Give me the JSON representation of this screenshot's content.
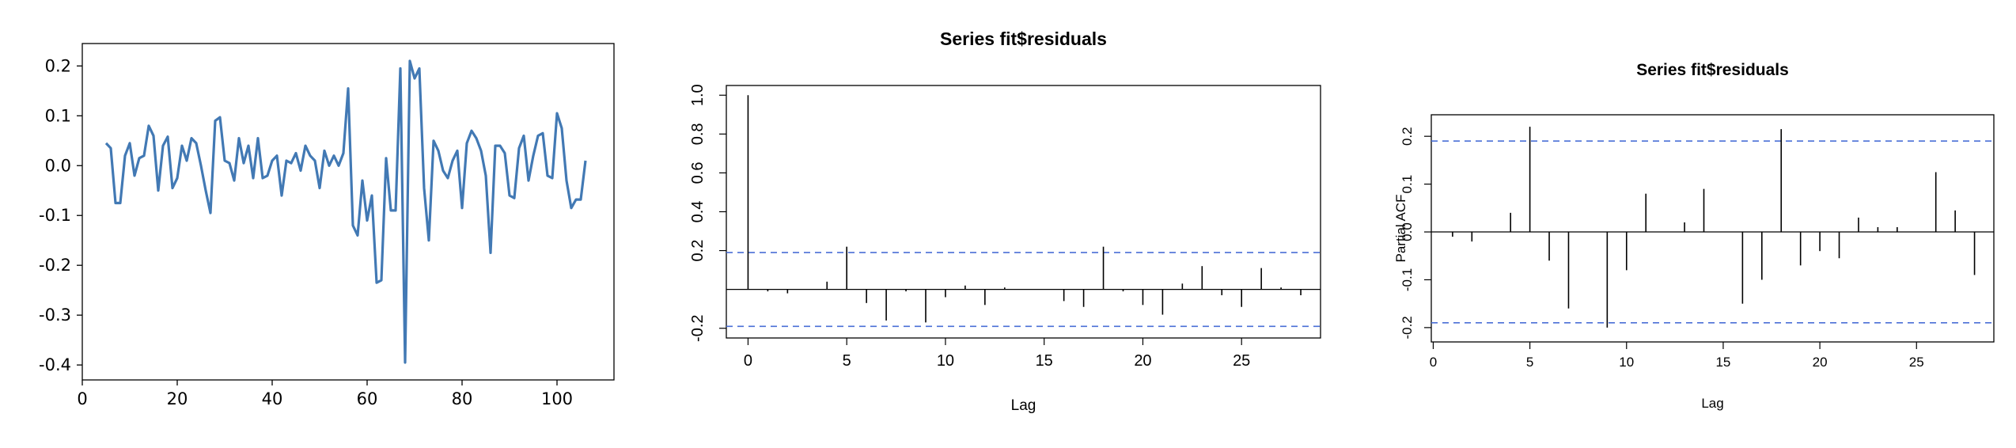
{
  "colors": {
    "line": "#4279b4",
    "stick": "#000000",
    "conf": "#4a6fd6",
    "frame": "#000000"
  },
  "chart_data": [
    {
      "type": "line",
      "title": "",
      "xlabel": "",
      "ylabel": "",
      "xlim": [
        0,
        112
      ],
      "ylim": [
        -0.43,
        0.245
      ],
      "xticks": [
        "0",
        "20",
        "40",
        "60",
        "80",
        "100"
      ],
      "yticks": [
        "0.2",
        "0.1",
        "0.0",
        "-0.1",
        "-0.2",
        "-0.3",
        "-0.4"
      ],
      "grid": false,
      "series": [
        {
          "x": [
            5,
            6,
            7,
            8,
            9,
            10,
            11,
            12,
            13,
            14,
            15,
            16,
            17,
            18,
            19,
            20,
            21,
            22,
            23,
            24,
            25,
            26,
            27,
            28,
            29,
            30,
            31,
            32,
            33,
            34,
            35,
            36,
            37,
            38,
            39,
            40,
            41,
            42,
            43,
            44,
            45,
            46,
            47,
            48,
            49,
            50,
            51,
            52,
            53,
            54,
            55,
            56,
            57,
            58,
            59,
            60,
            61,
            62,
            63,
            64,
            65,
            66,
            67,
            68,
            69,
            70,
            71,
            72,
            73,
            74,
            75,
            76,
            77,
            78,
            79,
            80,
            81,
            82,
            83,
            84,
            85,
            86,
            87,
            88,
            89,
            90,
            91,
            92,
            93,
            94,
            95,
            96,
            97,
            98,
            99,
            100,
            101,
            102,
            103,
            104,
            105,
            106
          ],
          "y": [
            0.045,
            0.035,
            -0.075,
            -0.075,
            0.02,
            0.045,
            -0.02,
            0.015,
            0.02,
            0.08,
            0.06,
            -0.05,
            0.04,
            0.058,
            -0.045,
            -0.025,
            0.04,
            0.01,
            0.055,
            0.045,
            0.0,
            -0.05,
            -0.095,
            0.09,
            0.097,
            0.01,
            0.005,
            -0.03,
            0.055,
            0.005,
            0.04,
            -0.025,
            0.055,
            -0.025,
            -0.02,
            0.01,
            0.02,
            -0.06,
            0.01,
            0.005,
            0.025,
            -0.01,
            0.04,
            0.02,
            0.01,
            -0.045,
            0.03,
            0.0,
            0.02,
            0.0,
            0.025,
            0.155,
            -0.12,
            -0.14,
            -0.03,
            -0.11,
            -0.06,
            -0.235,
            -0.23,
            0.015,
            -0.09,
            -0.09,
            0.195,
            -0.395,
            0.21,
            0.175,
            0.195,
            -0.045,
            -0.15,
            0.05,
            0.03,
            -0.01,
            -0.025,
            0.01,
            0.03,
            -0.085,
            0.045,
            0.07,
            0.055,
            0.03,
            -0.02,
            -0.175,
            0.04,
            0.04,
            0.025,
            -0.06,
            -0.065,
            0.035,
            0.06,
            -0.03,
            0.02,
            0.06,
            0.065,
            -0.02,
            -0.025,
            0.105,
            0.075,
            -0.03,
            -0.085,
            -0.068,
            -0.068,
            0.01
          ]
        }
      ]
    },
    {
      "type": "bar",
      "title": "Series  fit$residuals",
      "xlabel": "Lag",
      "ylabel": "",
      "xlim": [
        -1.1,
        29
      ],
      "ylim": [
        -0.25,
        1.05
      ],
      "xticks": [
        "0",
        "5",
        "10",
        "15",
        "20",
        "25"
      ],
      "yticks": [
        "-0.2",
        "0.2",
        "0.4",
        "0.6",
        "0.8",
        "1.0"
      ],
      "conf_limit": 0.19,
      "lags": [
        0,
        1,
        2,
        3,
        4,
        5,
        6,
        7,
        8,
        9,
        10,
        11,
        12,
        13,
        14,
        15,
        16,
        17,
        18,
        19,
        20,
        21,
        22,
        23,
        24,
        25,
        26,
        27,
        28
      ],
      "values": [
        1.0,
        -0.01,
        -0.02,
        0.0,
        0.04,
        0.22,
        -0.07,
        -0.16,
        -0.01,
        -0.17,
        -0.04,
        0.02,
        -0.08,
        0.01,
        0.0,
        0.0,
        -0.06,
        -0.09,
        0.22,
        -0.01,
        -0.08,
        -0.13,
        0.03,
        0.12,
        -0.03,
        -0.09,
        0.11,
        0.01,
        -0.03
      ]
    },
    {
      "type": "bar",
      "title": "Series  fit$residuals",
      "xlabel": "Lag",
      "ylabel": "Partial ACF",
      "xlim": [
        -0.1,
        29
      ],
      "ylim": [
        -0.23,
        0.245
      ],
      "xticks": [
        "0",
        "5",
        "10",
        "15",
        "20",
        "25"
      ],
      "yticks": [
        "-0.2",
        "-0.1",
        "0.0",
        "0.1",
        "0.2"
      ],
      "conf_limit": 0.19,
      "lags": [
        1,
        2,
        3,
        4,
        5,
        6,
        7,
        8,
        9,
        10,
        11,
        12,
        13,
        14,
        15,
        16,
        17,
        18,
        19,
        20,
        21,
        22,
        23,
        24,
        25,
        26,
        27,
        28
      ],
      "values": [
        -0.01,
        -0.02,
        0.0,
        0.04,
        0.22,
        -0.06,
        -0.16,
        0.0,
        -0.2,
        -0.08,
        0.08,
        0.0,
        0.02,
        0.09,
        0.0,
        -0.15,
        -0.1,
        0.215,
        -0.07,
        -0.04,
        -0.055,
        0.03,
        0.01,
        0.01,
        0.0,
        0.125,
        0.045,
        -0.09
      ]
    }
  ]
}
